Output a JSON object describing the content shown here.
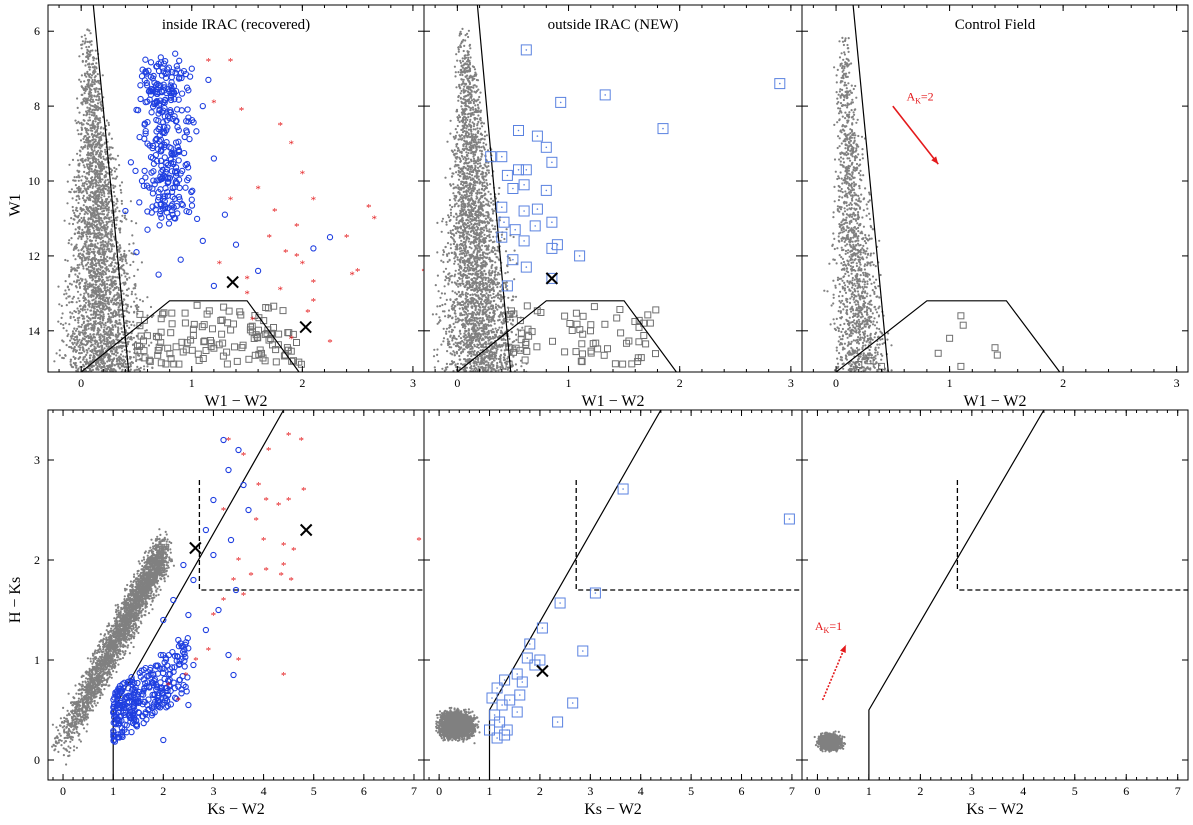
{
  "figure": {
    "colors": {
      "field": "#808080",
      "yso_recovered": "#1f3fe0",
      "yso_red": "#e41a1c",
      "yso_new": "#5a82e0",
      "contaminant": "#707070",
      "line": "#000000",
      "arrow": "#e41a1c"
    }
  },
  "chart_data": [
    {
      "id": "a",
      "type": "scatter",
      "title": "inside IRAC (recovered)",
      "xlabel": "W1 − W2",
      "ylabel": "W1",
      "xlim": [
        -0.3,
        3.1
      ],
      "ylim": [
        15.1,
        5.3
      ],
      "yinvert": true,
      "xticks": [
        0,
        1,
        2,
        3
      ],
      "xticklabels": [
        "0",
        "1",
        "2",
        "3"
      ],
      "yticks": [
        6,
        8,
        10,
        12,
        14
      ],
      "yticklabels": [
        "6",
        "8",
        "10",
        "12",
        "14"
      ],
      "field_cloud": true,
      "blue_circles": [
        [
          0.72,
          6.7
        ],
        [
          0.76,
          6.8
        ],
        [
          0.85,
          6.6
        ],
        [
          0.55,
          7.2
        ],
        [
          0.62,
          7.6
        ],
        [
          1.0,
          7.0
        ],
        [
          1.15,
          7.3
        ],
        [
          0.5,
          8.1
        ],
        [
          0.7,
          8.2
        ],
        [
          0.95,
          8.4
        ],
        [
          1.1,
          8.0
        ],
        [
          0.6,
          9.0
        ],
        [
          0.8,
          9.1
        ],
        [
          0.45,
          9.5
        ],
        [
          0.9,
          9.8
        ],
        [
          1.2,
          9.4
        ],
        [
          0.55,
          10.0
        ],
        [
          0.7,
          10.3
        ],
        [
          1.0,
          10.5
        ],
        [
          0.4,
          10.8
        ],
        [
          0.85,
          11.0
        ],
        [
          1.3,
          10.9
        ],
        [
          0.6,
          11.3
        ],
        [
          1.1,
          11.6
        ],
        [
          0.5,
          11.9
        ],
        [
          0.9,
          12.1
        ],
        [
          1.4,
          11.7
        ],
        [
          2.1,
          11.8
        ],
        [
          2.25,
          11.5
        ],
        [
          1.6,
          12.4
        ],
        [
          0.7,
          12.5
        ],
        [
          1.2,
          12.8
        ]
      ],
      "blue_region": [
        0.6,
        6.8,
        1.3,
        11.0
      ],
      "red_stars": [
        [
          1.15,
          6.8
        ],
        [
          1.35,
          6.8
        ],
        [
          1.2,
          7.9
        ],
        [
          1.45,
          8.1
        ],
        [
          1.8,
          8.5
        ],
        [
          1.9,
          9.0
        ],
        [
          2.0,
          9.8
        ],
        [
          1.6,
          10.2
        ],
        [
          1.35,
          10.5
        ],
        [
          1.75,
          10.8
        ],
        [
          1.95,
          11.2
        ],
        [
          2.1,
          10.5
        ],
        [
          2.6,
          10.7
        ],
        [
          2.4,
          11.5
        ],
        [
          2.65,
          11.0
        ],
        [
          1.7,
          11.5
        ],
        [
          1.85,
          11.9
        ],
        [
          1.95,
          12.0
        ],
        [
          2.0,
          12.2
        ],
        [
          2.5,
          12.4
        ],
        [
          2.45,
          12.5
        ],
        [
          1.5,
          12.6
        ],
        [
          1.25,
          12.2
        ],
        [
          1.8,
          12.9
        ],
        [
          2.1,
          13.2
        ],
        [
          1.5,
          13.0
        ],
        [
          1.55,
          13.7
        ],
        [
          2.25,
          14.3
        ],
        [
          1.9,
          14.2
        ],
        [
          3.1,
          12.4
        ],
        [
          2.1,
          12.7
        ],
        [
          2.05,
          13.5
        ]
      ],
      "gray_squares_region": [
        0.5,
        13.3,
        2.0,
        14.9
      ],
      "gray_squares_count": 130,
      "x_markers": [
        [
          1.37,
          12.7
        ],
        [
          2.03,
          13.9
        ]
      ],
      "lines": [
        [
          [
            0.11,
            5.3
          ],
          [
            0.43,
            15.1
          ]
        ],
        [
          [
            0.0,
            15.1
          ],
          [
            0.8,
            13.2
          ],
          [
            1.5,
            13.2
          ],
          [
            1.97,
            15.1
          ]
        ]
      ]
    },
    {
      "id": "b",
      "type": "scatter",
      "title": "outside IRAC (NEW)",
      "xlabel": "W1 − W2",
      "ylabel": "",
      "xlim": [
        -0.3,
        3.1
      ],
      "ylim": [
        15.1,
        5.3
      ],
      "yinvert": true,
      "xticks": [
        0,
        1,
        2,
        3
      ],
      "xticklabels": [
        "0",
        "1",
        "2",
        "3"
      ],
      "yticks": [
        6,
        8,
        10,
        12,
        14
      ],
      "yticklabels": [],
      "field_cloud": true,
      "blue_squares": [
        [
          0.62,
          6.5
        ],
        [
          2.9,
          7.4
        ],
        [
          1.33,
          7.7
        ],
        [
          0.93,
          7.9
        ],
        [
          0.55,
          8.65
        ],
        [
          0.72,
          8.8
        ],
        [
          1.85,
          8.6
        ],
        [
          0.8,
          9.1
        ],
        [
          0.3,
          9.35
        ],
        [
          0.4,
          9.35
        ],
        [
          0.85,
          9.5
        ],
        [
          0.55,
          9.7
        ],
        [
          0.45,
          9.85
        ],
        [
          0.62,
          9.7
        ],
        [
          0.5,
          10.2
        ],
        [
          0.6,
          10.1
        ],
        [
          0.8,
          10.25
        ],
        [
          0.4,
          10.7
        ],
        [
          0.6,
          10.8
        ],
        [
          0.72,
          10.75
        ],
        [
          0.42,
          11.1
        ],
        [
          0.52,
          11.3
        ],
        [
          0.7,
          11.2
        ],
        [
          0.85,
          11.1
        ],
        [
          0.4,
          11.5
        ],
        [
          0.6,
          11.6
        ],
        [
          0.85,
          11.8
        ],
        [
          1.1,
          12.0
        ],
        [
          0.5,
          12.1
        ],
        [
          0.62,
          12.3
        ],
        [
          0.85,
          12.6
        ],
        [
          0.45,
          12.8
        ],
        [
          0.9,
          11.7
        ]
      ],
      "gray_squares_region": [
        0.45,
        13.3,
        1.8,
        14.9
      ],
      "gray_squares_count": 70,
      "x_markers": [
        [
          0.85,
          12.6
        ]
      ],
      "lines": [
        [
          [
            0.18,
            5.3
          ],
          [
            0.48,
            15.1
          ]
        ],
        [
          [
            0.0,
            15.1
          ],
          [
            0.8,
            13.2
          ],
          [
            1.5,
            13.2
          ],
          [
            1.97,
            15.1
          ]
        ]
      ]
    },
    {
      "id": "c",
      "type": "scatter",
      "title": "Control Field",
      "xlabel": "W1 − W2",
      "ylabel": "",
      "xlim": [
        -0.3,
        3.1
      ],
      "ylim": [
        15.1,
        5.3
      ],
      "yinvert": true,
      "xticks": [
        0,
        1,
        2,
        3
      ],
      "xticklabels": [
        "0",
        "1",
        "2",
        "3"
      ],
      "yticks": [
        6,
        8,
        10,
        12,
        14
      ],
      "yticklabels": [],
      "field_cloud": true,
      "gray_squares": [
        [
          1.1,
          13.6
        ],
        [
          1.12,
          13.85
        ],
        [
          1.0,
          14.2
        ],
        [
          1.4,
          14.45
        ],
        [
          1.42,
          14.65
        ],
        [
          0.9,
          14.6
        ],
        [
          1.1,
          14.95
        ],
        [
          0.3,
          14.8
        ],
        [
          0.4,
          14.95
        ],
        [
          0.2,
          14.9
        ]
      ],
      "x_markers": [],
      "lines": [
        [
          [
            0.15,
            5.3
          ],
          [
            0.46,
            15.1
          ]
        ],
        [
          [
            0.0,
            15.1
          ],
          [
            0.8,
            13.2
          ],
          [
            1.5,
            13.2
          ],
          [
            1.97,
            15.1
          ]
        ]
      ],
      "arrow": {
        "from": [
          0.5,
          8.0
        ],
        "to": [
          0.9,
          9.55
        ],
        "label": "A",
        "sub": "K",
        "rest": "=2",
        "label_at": [
          0.62,
          7.85
        ]
      }
    },
    {
      "id": "d",
      "type": "scatter",
      "title": "",
      "xlabel": "Ks − W2",
      "ylabel": "H − Ks",
      "xlim": [
        -0.3,
        7.2
      ],
      "ylim": [
        -0.2,
        3.5
      ],
      "yinvert": false,
      "xticks": [
        0,
        1,
        2,
        3,
        4,
        5,
        6,
        7
      ],
      "xticklabels": [
        "0",
        "1",
        "2",
        "3",
        "4",
        "5",
        "6",
        "7"
      ],
      "yticks": [
        0,
        1,
        2,
        3
      ],
      "yticklabels": [
        "0",
        "1",
        "2",
        "3"
      ],
      "field_cloud": true,
      "blue_circles": [
        [
          3.2,
          3.2
        ],
        [
          3.5,
          3.1
        ],
        [
          3.3,
          2.9
        ],
        [
          3.6,
          2.75
        ],
        [
          3.0,
          2.6
        ],
        [
          3.7,
          2.5
        ],
        [
          2.85,
          2.3
        ],
        [
          3.35,
          2.2
        ],
        [
          3.0,
          2.05
        ],
        [
          2.4,
          1.95
        ],
        [
          2.6,
          1.8
        ],
        [
          3.45,
          1.7
        ],
        [
          2.2,
          1.6
        ],
        [
          3.1,
          1.5
        ],
        [
          2.5,
          1.45
        ],
        [
          2.0,
          1.4
        ],
        [
          2.85,
          1.3
        ],
        [
          2.3,
          1.2
        ],
        [
          3.3,
          1.05
        ],
        [
          1.95,
          1.05
        ],
        [
          2.6,
          0.95
        ],
        [
          1.8,
          0.85
        ],
        [
          3.4,
          0.85
        ],
        [
          2.1,
          0.65
        ],
        [
          1.7,
          0.5
        ],
        [
          2.5,
          0.55
        ],
        [
          2.0,
          0.2
        ]
      ],
      "blue_region": [
        1.0,
        0.15,
        2.5,
        1.3
      ],
      "red_stars": [
        [
          3.3,
          3.2
        ],
        [
          3.6,
          3.05
        ],
        [
          4.1,
          3.1
        ],
        [
          4.5,
          3.25
        ],
        [
          4.75,
          3.2
        ],
        [
          3.9,
          2.75
        ],
        [
          4.05,
          2.6
        ],
        [
          4.3,
          2.55
        ],
        [
          4.5,
          2.6
        ],
        [
          4.8,
          2.7
        ],
        [
          3.2,
          2.5
        ],
        [
          3.85,
          2.4
        ],
        [
          4.0,
          2.2
        ],
        [
          4.4,
          2.15
        ],
        [
          4.6,
          2.1
        ],
        [
          3.5,
          2.0
        ],
        [
          4.05,
          1.9
        ],
        [
          4.4,
          1.95
        ],
        [
          3.4,
          1.8
        ],
        [
          3.75,
          1.85
        ],
        [
          4.35,
          1.85
        ],
        [
          4.55,
          1.8
        ],
        [
          3.2,
          1.6
        ],
        [
          3.6,
          1.65
        ],
        [
          3.0,
          1.45
        ],
        [
          2.9,
          1.1
        ],
        [
          3.5,
          1.0
        ],
        [
          4.4,
          0.85
        ],
        [
          2.65,
          1.0
        ],
        [
          2.45,
          0.85
        ],
        [
          2.1,
          0.75
        ],
        [
          2.3,
          0.6
        ],
        [
          7.1,
          2.2
        ]
      ],
      "gray_squares": [],
      "x_markers": [
        [
          2.64,
          2.12
        ],
        [
          4.85,
          2.3
        ]
      ],
      "lines": [
        [
          [
            1.0,
            -0.2
          ],
          [
            1.0,
            0.5
          ],
          [
            4.4,
            3.5
          ]
        ]
      ],
      "dashed": [
        [
          [
            2.72,
            2.8
          ],
          [
            2.72,
            1.7
          ],
          [
            7.2,
            1.7
          ]
        ]
      ]
    },
    {
      "id": "e",
      "type": "scatter",
      "title": "",
      "xlabel": "Ks − W2",
      "ylabel": "",
      "xlim": [
        -0.3,
        7.2
      ],
      "ylim": [
        -0.2,
        3.5
      ],
      "yinvert": false,
      "xticks": [
        0,
        1,
        2,
        3,
        4,
        5,
        6,
        7
      ],
      "xticklabels": [
        "0",
        "1",
        "2",
        "3",
        "4",
        "5",
        "6",
        "7"
      ],
      "yticks": [
        0,
        1,
        2,
        3
      ],
      "yticklabels": [],
      "field_cloud": true,
      "blue_squares": [
        [
          3.65,
          2.71
        ],
        [
          6.95,
          2.41
        ],
        [
          3.1,
          1.67
        ],
        [
          2.4,
          1.57
        ],
        [
          2.05,
          1.32
        ],
        [
          1.8,
          1.16
        ],
        [
          2.85,
          1.09
        ],
        [
          2.0,
          1.0
        ],
        [
          1.75,
          1.02
        ],
        [
          1.55,
          0.86
        ],
        [
          1.3,
          0.8
        ],
        [
          1.15,
          0.72
        ],
        [
          1.65,
          0.78
        ],
        [
          1.05,
          0.62
        ],
        [
          1.25,
          0.55
        ],
        [
          1.4,
          0.6
        ],
        [
          1.55,
          0.48
        ],
        [
          1.1,
          0.45
        ],
        [
          1.2,
          0.38
        ],
        [
          1.35,
          0.3
        ],
        [
          1.0,
          0.3
        ],
        [
          1.15,
          0.22
        ],
        [
          1.3,
          0.25
        ],
        [
          2.65,
          0.57
        ],
        [
          2.35,
          0.38
        ],
        [
          1.6,
          0.65
        ],
        [
          1.9,
          0.95
        ]
      ],
      "x_markers": [
        [
          2.05,
          0.89
        ]
      ],
      "lines": [
        [
          [
            1.0,
            -0.2
          ],
          [
            1.0,
            0.5
          ],
          [
            4.4,
            3.5
          ]
        ]
      ],
      "dashed": [
        [
          [
            2.72,
            2.8
          ],
          [
            2.72,
            1.7
          ],
          [
            7.2,
            1.7
          ]
        ]
      ]
    },
    {
      "id": "f",
      "type": "scatter",
      "title": "",
      "xlabel": "Ks − W2",
      "ylabel": "",
      "xlim": [
        -0.3,
        7.2
      ],
      "ylim": [
        -0.2,
        3.5
      ],
      "yinvert": false,
      "xticks": [
        0,
        1,
        2,
        3,
        4,
        5,
        6,
        7
      ],
      "xticklabels": [
        "0",
        "1",
        "2",
        "3",
        "4",
        "5",
        "6",
        "7"
      ],
      "yticks": [
        0,
        1,
        2,
        3
      ],
      "yticklabels": [],
      "field_cloud": true,
      "x_markers": [],
      "lines": [
        [
          [
            1.0,
            -0.2
          ],
          [
            1.0,
            0.5
          ],
          [
            4.4,
            3.5
          ]
        ]
      ],
      "dashed": [
        [
          [
            2.72,
            2.8
          ],
          [
            2.72,
            1.7
          ],
          [
            7.2,
            1.7
          ]
        ]
      ],
      "arrow": {
        "from": [
          0.1,
          0.6
        ],
        "to": [
          0.55,
          1.15
        ],
        "label": "A",
        "sub": "K",
        "rest": "=1",
        "label_at": [
          -0.05,
          1.3
        ],
        "dotted": true
      }
    }
  ]
}
